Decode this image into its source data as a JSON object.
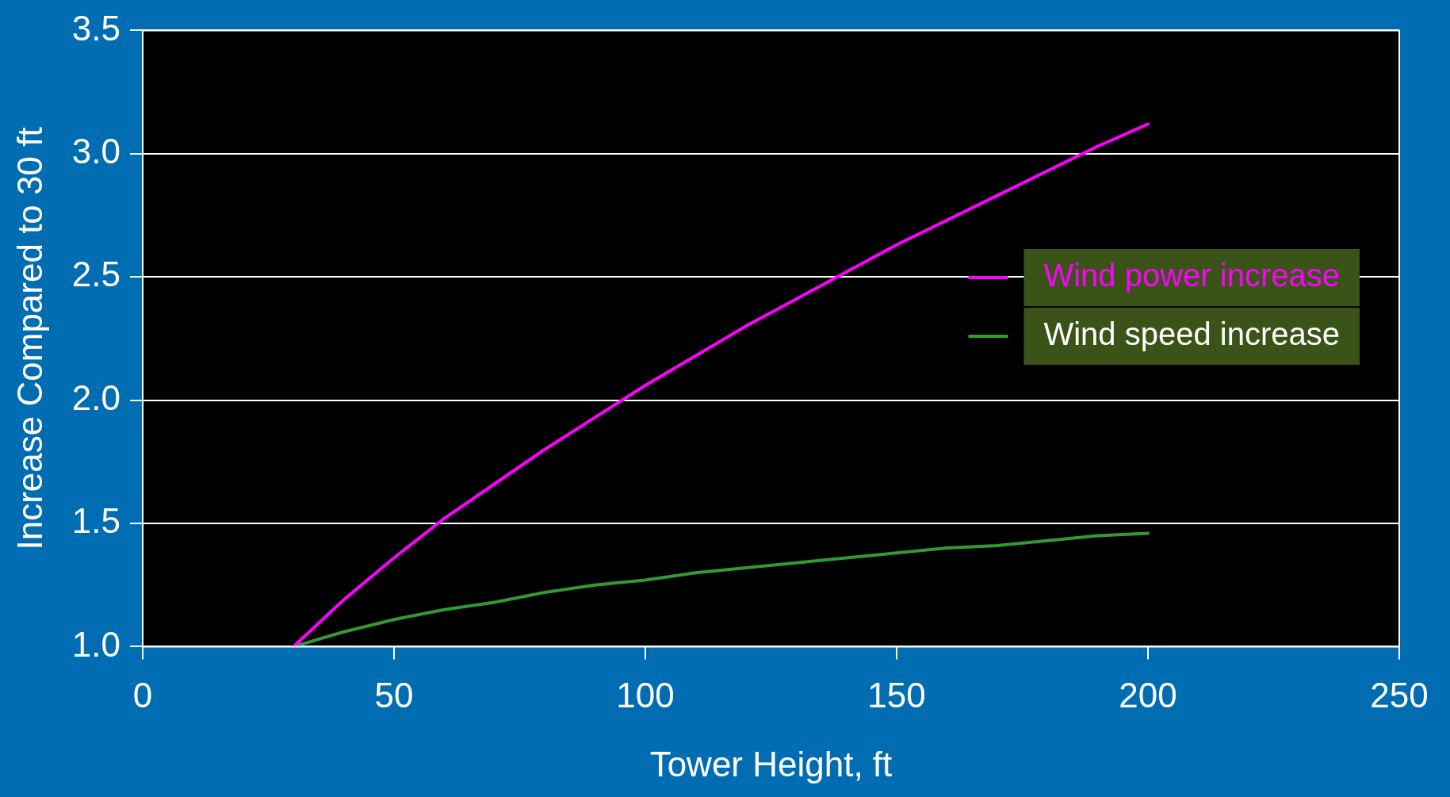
{
  "chart_data": {
    "type": "line",
    "xlabel": "Tower Height, ft",
    "ylabel": "Increase Compared to 30 ft",
    "x": [
      30,
      40,
      50,
      60,
      70,
      80,
      90,
      100,
      110,
      120,
      130,
      140,
      150,
      160,
      170,
      180,
      190,
      200
    ],
    "series": [
      {
        "name": "Wind power increase",
        "color": "#ff00ff",
        "values": [
          1.0,
          1.19,
          1.36,
          1.52,
          1.66,
          1.8,
          1.93,
          2.06,
          2.18,
          2.3,
          2.41,
          2.52,
          2.63,
          2.73,
          2.83,
          2.93,
          3.03,
          3.12
        ]
      },
      {
        "name": "Wind speed increase",
        "color": "#339933",
        "values": [
          1.0,
          1.06,
          1.11,
          1.15,
          1.18,
          1.22,
          1.25,
          1.27,
          1.3,
          1.32,
          1.34,
          1.36,
          1.38,
          1.4,
          1.41,
          1.43,
          1.45,
          1.46
        ]
      }
    ],
    "xlim": [
      0,
      250
    ],
    "xticks": [
      0,
      50,
      100,
      150,
      200,
      250
    ],
    "ylim": [
      1.0,
      3.5
    ],
    "yticks": [
      {
        "value": 1.0,
        "label": "1.0"
      },
      {
        "value": 1.5,
        "label": "1.5"
      },
      {
        "value": 2.0,
        "label": "2.0"
      },
      {
        "value": 2.5,
        "label": "2.5"
      },
      {
        "value": 3.0,
        "label": "3.0"
      },
      {
        "value": 3.5,
        "label": "3.5"
      }
    ],
    "grid": "y",
    "legend": "right",
    "marker": "none",
    "line_style": "solid"
  }
}
